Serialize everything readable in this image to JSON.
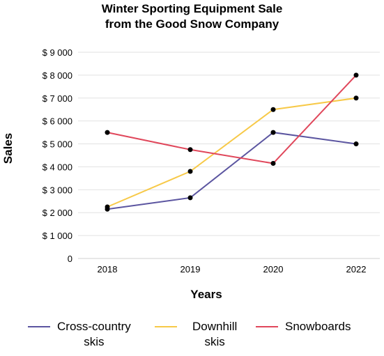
{
  "chart_data": {
    "type": "line",
    "title_lines": [
      "Winter Sporting Equipment Sale",
      "from the Good Snow Company"
    ],
    "xlabel": "Years",
    "ylabel": "Sales",
    "categories": [
      "2018",
      "2019",
      "2020",
      "2022"
    ],
    "ylim": [
      0,
      9000
    ],
    "yticks": [
      {
        "value": 0,
        "label": "0"
      },
      {
        "value": 1000,
        "label": "$ 1 000"
      },
      {
        "value": 2000,
        "label": "$ 2 000"
      },
      {
        "value": 3000,
        "label": "$ 3 000"
      },
      {
        "value": 4000,
        "label": "$ 4 000"
      },
      {
        "value": 5000,
        "label": "$ 5 000"
      },
      {
        "value": 6000,
        "label": "$ 6 000"
      },
      {
        "value": 7000,
        "label": "$ 7 000"
      },
      {
        "value": 8000,
        "label": "$ 8 000"
      },
      {
        "value": 9000,
        "label": "$ 9 000"
      }
    ],
    "grid": true,
    "legend_position": "bottom",
    "series": [
      {
        "name": "Cross-country skis",
        "name_lines": [
          "Cross-country",
          "skis"
        ],
        "color": "#5b55a0",
        "values": [
          2150,
          2650,
          5500,
          5000
        ]
      },
      {
        "name": "Downhill skis",
        "name_lines": [
          "Downhill",
          "skis"
        ],
        "color": "#f7c948",
        "values": [
          2250,
          3800,
          6500,
          7000
        ]
      },
      {
        "name": "Snowboards",
        "name_lines": [
          "Snowboards"
        ],
        "color": "#e0475b",
        "values": [
          5500,
          4750,
          4150,
          8000
        ]
      }
    ],
    "marker_color": "#000000",
    "gridline_color": "#e2e2e2"
  }
}
